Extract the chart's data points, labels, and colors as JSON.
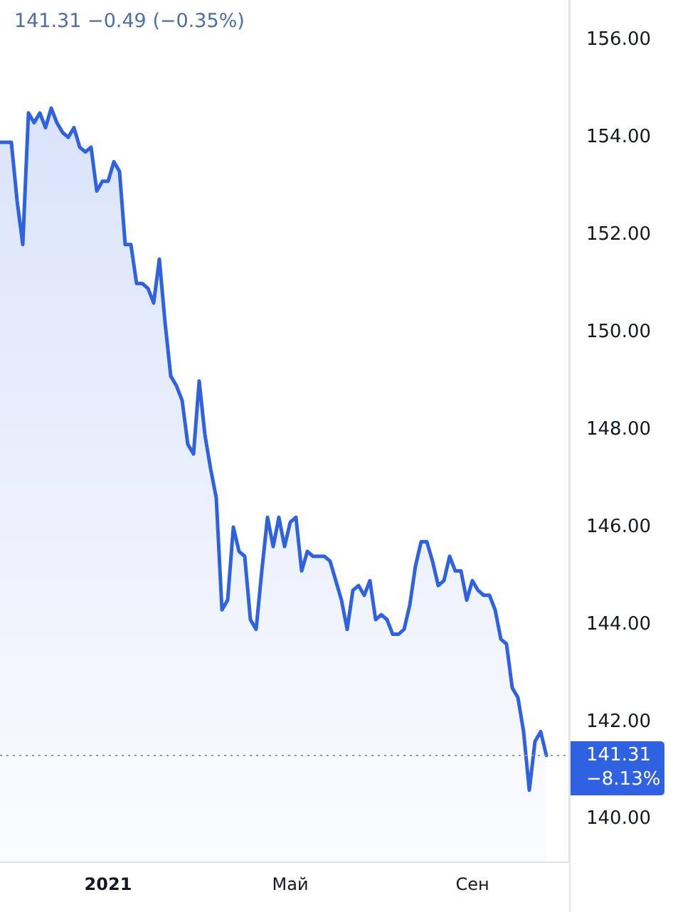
{
  "chart_data": {
    "type": "area",
    "title": "141.31 −0.49 (−0.35%)",
    "categories": [
      null,
      null,
      null,
      null,
      null,
      null,
      null,
      null,
      null,
      null,
      null,
      null,
      null,
      null,
      null,
      null,
      null,
      null,
      null,
      "2021",
      null,
      null,
      null,
      null,
      null,
      null,
      null,
      null,
      null,
      null,
      null,
      null,
      null,
      null,
      null,
      null,
      null,
      null,
      null,
      null,
      null,
      null,
      null,
      null,
      null,
      null,
      null,
      null,
      null,
      null,
      null,
      "Май",
      null,
      null,
      null,
      null,
      null,
      null,
      null,
      null,
      null,
      null,
      null,
      null,
      null,
      null,
      null,
      null,
      null,
      null,
      null,
      null,
      null,
      null,
      null,
      null,
      null,
      null,
      null,
      null,
      null,
      null,
      null,
      "Сен",
      null,
      null,
      null,
      null,
      null,
      null,
      null,
      null,
      null,
      null,
      null,
      null,
      null,
      null,
      null,
      null,
      null
    ],
    "values": [
      153.9,
      153.9,
      153.9,
      152.7,
      151.8,
      154.5,
      154.3,
      154.5,
      154.2,
      154.6,
      154.3,
      154.1,
      154.0,
      154.2,
      153.8,
      153.7,
      153.8,
      152.9,
      153.1,
      153.1,
      153.5,
      153.3,
      151.8,
      151.8,
      151.0,
      151.0,
      150.9,
      150.6,
      151.5,
      150.2,
      149.1,
      148.9,
      148.6,
      147.7,
      147.5,
      149.0,
      147.9,
      147.2,
      146.6,
      144.3,
      144.5,
      146.0,
      145.5,
      145.4,
      144.1,
      143.9,
      145.1,
      146.2,
      145.6,
      146.2,
      145.6,
      146.1,
      146.2,
      145.1,
      145.5,
      145.4,
      145.4,
      145.4,
      145.3,
      144.9,
      144.5,
      143.9,
      144.7,
      144.8,
      144.6,
      144.9,
      144.1,
      144.2,
      144.1,
      143.8,
      143.8,
      143.9,
      144.4,
      145.2,
      145.7,
      145.7,
      145.3,
      144.8,
      144.9,
      145.4,
      145.1,
      145.1,
      144.5,
      144.9,
      144.7,
      144.6,
      144.6,
      144.3,
      143.7,
      143.6,
      142.7,
      142.5,
      141.8,
      140.6,
      141.6,
      141.8,
      141.31,
      null,
      null,
      null,
      null
    ],
    "color": "#2e62e0",
    "ylim": [
      139.12,
      156.82
    ],
    "yticks": [
      {
        "value": 140,
        "label": "140.00"
      },
      {
        "value": 142,
        "label": "142.00"
      },
      {
        "value": 144,
        "label": "144.00"
      },
      {
        "value": 146,
        "label": "146.00"
      },
      {
        "value": 148,
        "label": "148.00"
      },
      {
        "value": 150,
        "label": "150.00"
      },
      {
        "value": 152,
        "label": "152.00"
      },
      {
        "value": 154,
        "label": "154.00"
      },
      {
        "value": 156,
        "label": "156.00"
      }
    ],
    "ref_lines": [
      {
        "axis": "y",
        "value": 141.31,
        "label": "141.31\n−8.13%",
        "color": "#9598a1",
        "line_style": "dotted"
      }
    ]
  }
}
